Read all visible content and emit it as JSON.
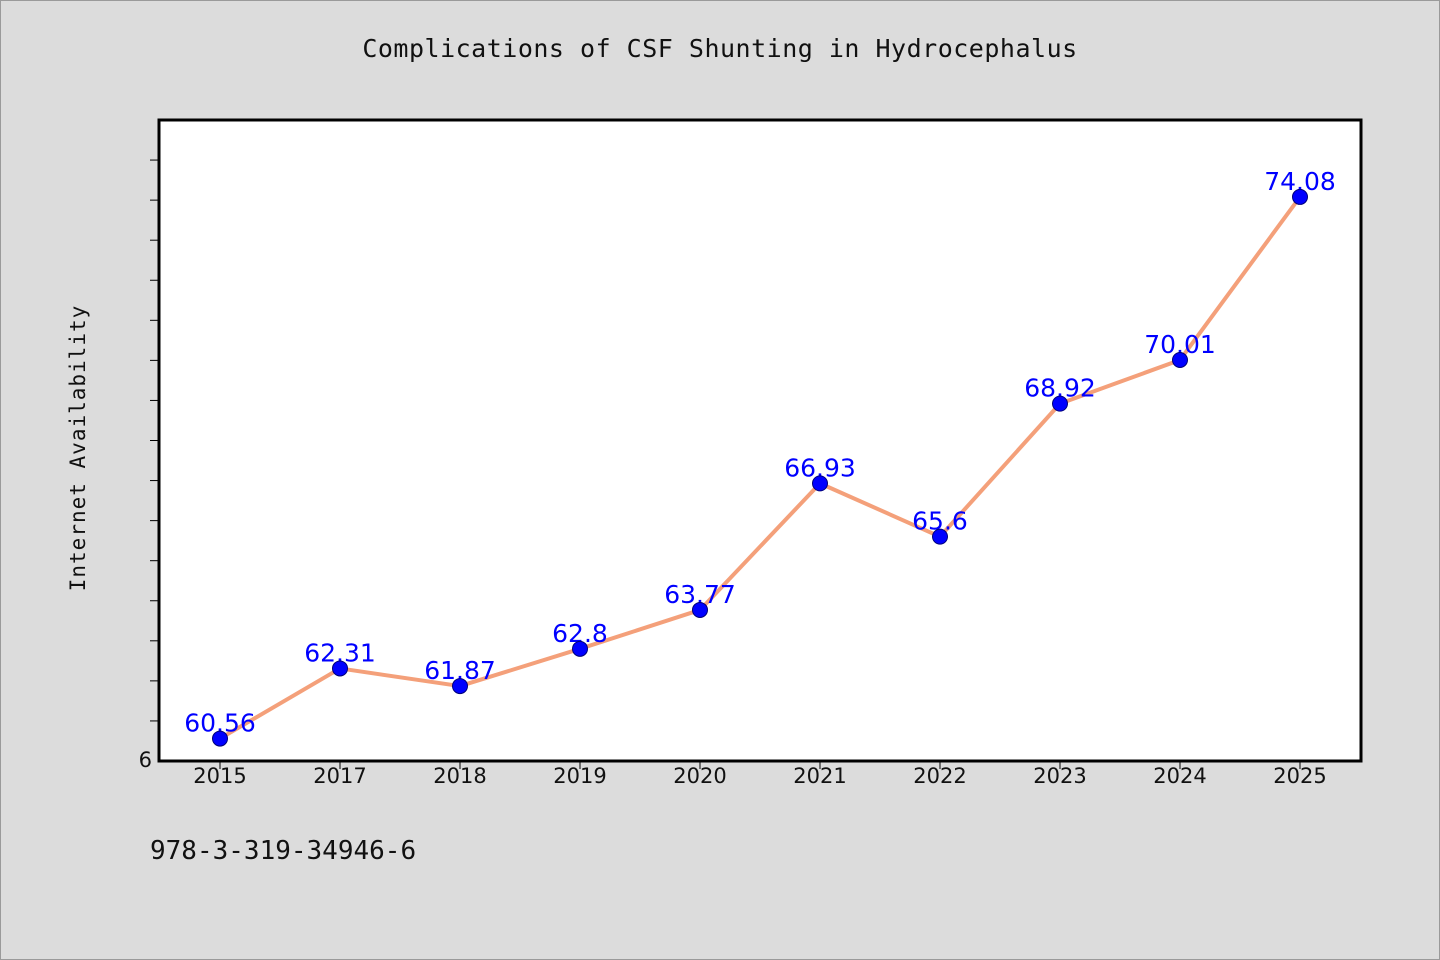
{
  "chart_data": {
    "type": "line",
    "title": "Complications of CSF Shunting in Hydrocephalus",
    "ylabel": "Internet Availability",
    "xlabel": "",
    "categories": [
      "2015",
      "2017",
      "2018",
      "2019",
      "2020",
      "2021",
      "2022",
      "2023",
      "2024",
      "2025"
    ],
    "series": [
      {
        "values": [
          60.56,
          62.31,
          61.87,
          62.8,
          63.77,
          66.93,
          65.6,
          68.92,
          70.01,
          74.08
        ],
        "labels": [
          "60.56",
          "62.31",
          "61.87",
          "62.8",
          "63.77",
          "66.93",
          "65.6",
          "68.92",
          "70.01",
          "74.08"
        ]
      }
    ],
    "y_tick_labels": [
      "6"
    ],
    "ylim": [
      60,
      76
    ],
    "grid": false,
    "colors": {
      "line": "#f4a07a",
      "marker": "#0000ff",
      "data_label": "#0000ff",
      "plot_background": "#ffffff",
      "page_background": "#dcdcdc"
    }
  },
  "footer": {
    "isbn": "978-3-319-34946-6"
  }
}
